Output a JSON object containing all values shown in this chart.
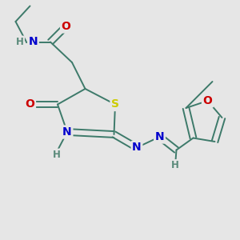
{
  "bg_color": "#e6e6e6",
  "bond_color": "#3d7a6a",
  "bond_width": 1.4,
  "atom_colors": {
    "C": "#3d7a6a",
    "H": "#5a8a7a",
    "N": "#0000cc",
    "O": "#cc0000",
    "S": "#cccc00"
  },
  "font_size_atom": 10,
  "font_size_small": 8.5
}
